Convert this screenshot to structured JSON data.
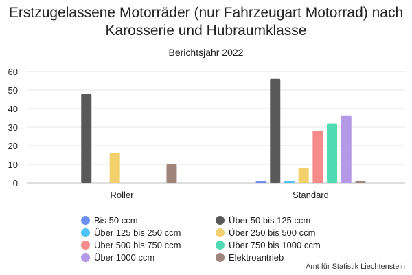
{
  "chart_data": {
    "type": "bar",
    "title": "Erstzugelassene Motorräder (nur Fahrzeugart Motorrad) nach Karosserie und Hubraumklasse",
    "subtitle": "Berichtsjahr 2022",
    "categories": [
      "Roller",
      "Standard"
    ],
    "ylim": [
      0,
      60
    ],
    "yticks": [
      0,
      10,
      20,
      30,
      40,
      50,
      60
    ],
    "grid": true,
    "legend_position": "bottom",
    "series": [
      {
        "name": "Bis 50 ccm",
        "color": "#6c8ff2",
        "values": [
          0,
          1
        ]
      },
      {
        "name": "Über 50 bis 125 ccm",
        "color": "#595959",
        "values": [
          48,
          56
        ]
      },
      {
        "name": "Über 125 bis 250 ccm",
        "color": "#4fc3f7",
        "values": [
          0,
          1
        ]
      },
      {
        "name": "Über 250 bis 500 ccm",
        "color": "#f2d06b",
        "values": [
          16,
          8
        ]
      },
      {
        "name": "Über 500 bis 750 ccm",
        "color": "#f78b8b",
        "values": [
          0,
          28
        ]
      },
      {
        "name": "Über 750 bis 1000 ccm",
        "color": "#4fdab3",
        "values": [
          0,
          32
        ]
      },
      {
        "name": "Über 1000 ccm",
        "color": "#b49ae6",
        "values": [
          0,
          36
        ]
      },
      {
        "name": "Elektroantrieb",
        "color": "#a0857c",
        "values": [
          10,
          1
        ]
      }
    ]
  },
  "credit": "Amt für Statistik Liechtenstein"
}
